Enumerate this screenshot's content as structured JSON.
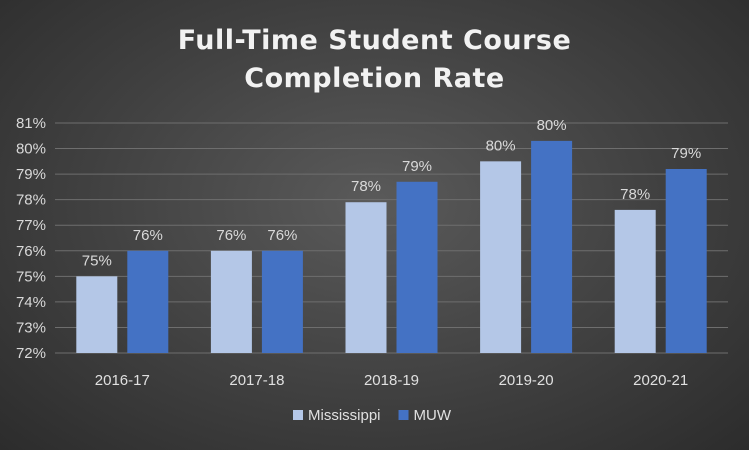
{
  "chart_data": {
    "type": "bar",
    "title_lines": [
      "Full-Time Student Course",
      "Completion Rate"
    ],
    "categories": [
      "2016-17",
      "2017-18",
      "2018-19",
      "2019-20",
      "2020-21"
    ],
    "series": [
      {
        "name": "Mississippi",
        "color": "#b4c7e7",
        "values": [
          75.0,
          76.0,
          77.9,
          79.5,
          77.6
        ],
        "labels": [
          "75%",
          "76%",
          "78%",
          "80%",
          "78%"
        ]
      },
      {
        "name": "MUW",
        "color": "#4472c4",
        "values": [
          76.0,
          76.0,
          78.7,
          80.3,
          79.2
        ],
        "labels": [
          "76%",
          "76%",
          "79%",
          "80%",
          "79%"
        ]
      }
    ],
    "ylim": [
      72,
      81
    ],
    "yticks": [
      72,
      73,
      74,
      75,
      76,
      77,
      78,
      79,
      80,
      81
    ],
    "ytick_labels": [
      "72%",
      "73%",
      "74%",
      "75%",
      "76%",
      "77%",
      "78%",
      "79%",
      "80%",
      "81%"
    ],
    "grid": true,
    "legend_position": "bottom",
    "background": "#404040",
    "text_color": "#d9d9d9"
  }
}
